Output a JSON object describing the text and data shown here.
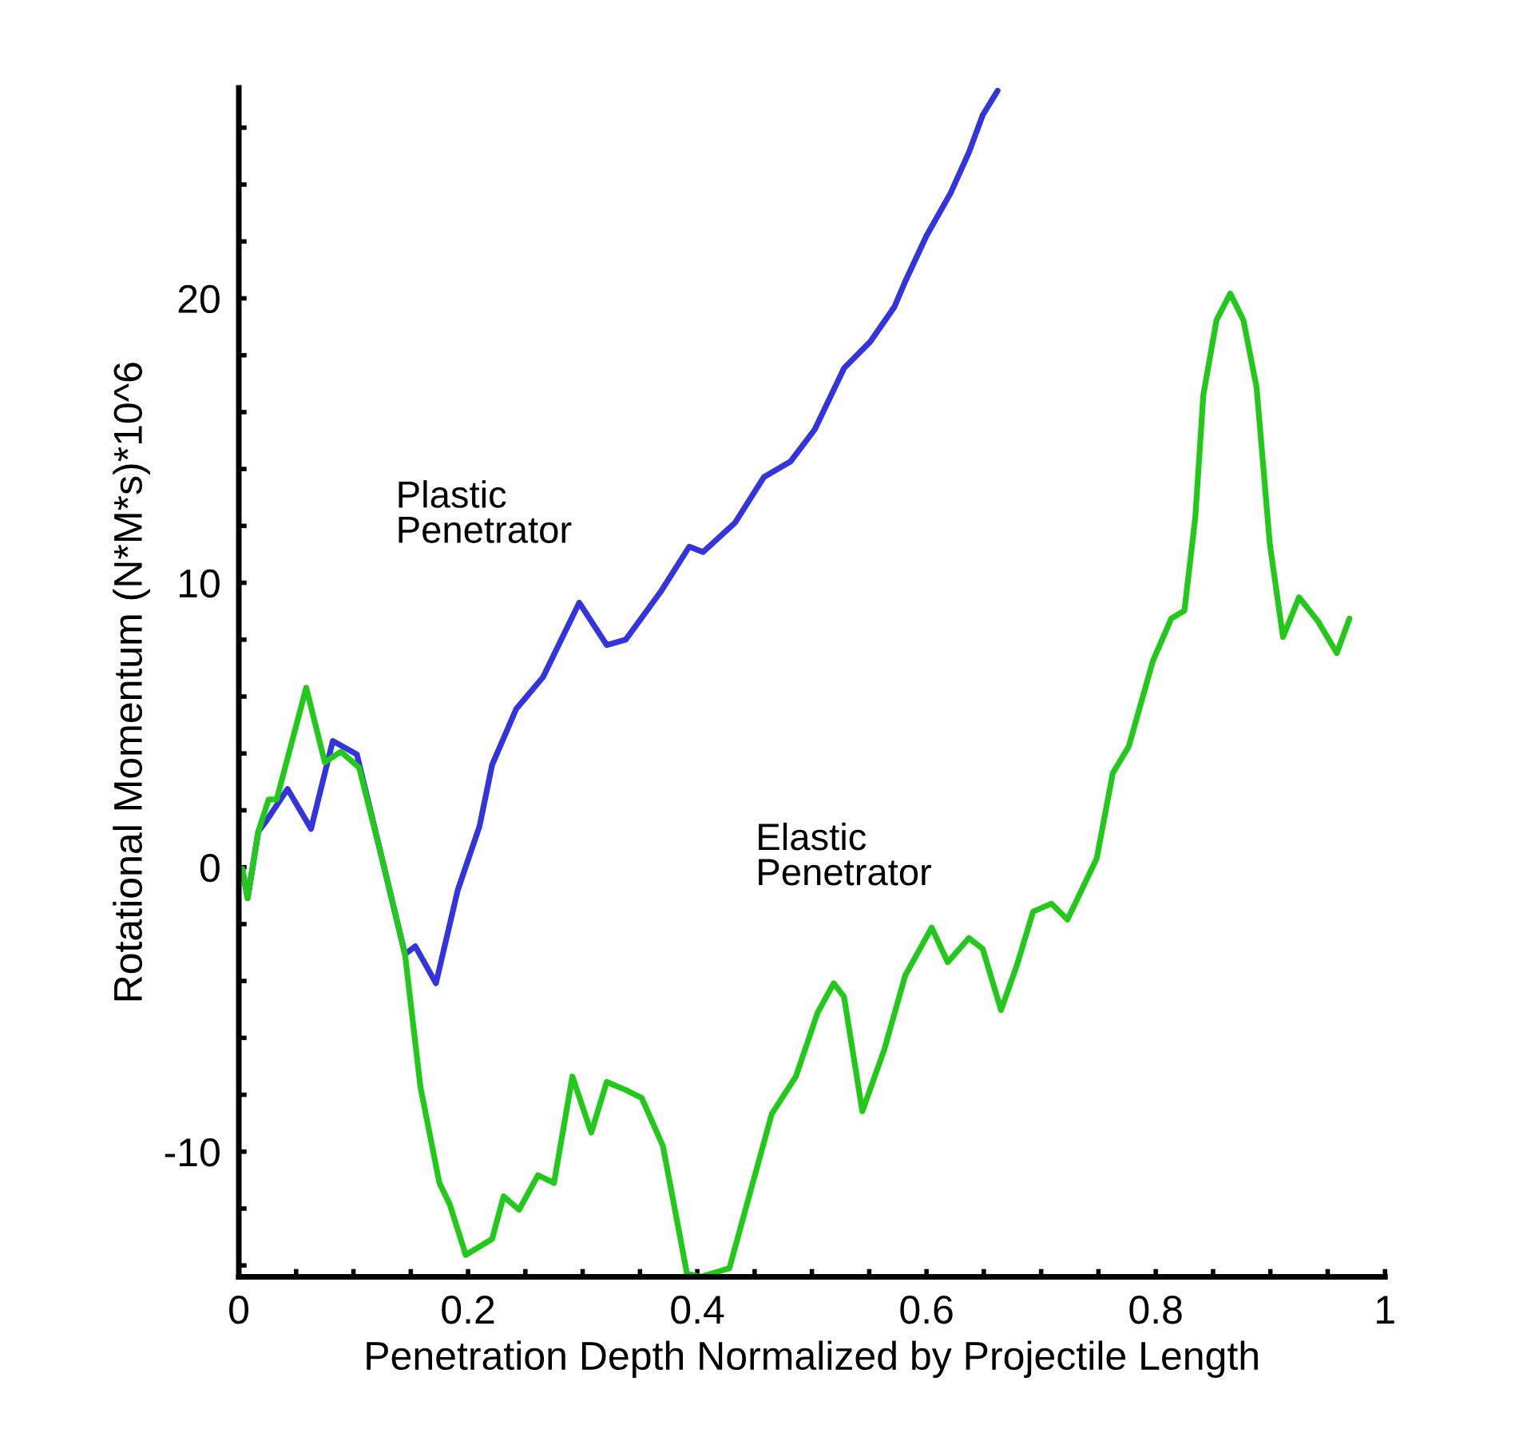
{
  "chart_data": {
    "type": "line",
    "xlabel": "Penetration Depth Normalized by Projectile Length",
    "ylabel": "Rotational Momentum (N*M*s)*10^6",
    "xlim": [
      0,
      1
    ],
    "ylim": [
      -14.4,
      27.4
    ],
    "xticks": [
      0,
      {
        "value": 0.05,
        "label": null
      },
      0.2,
      {
        "value": 0.1,
        "label": null
      },
      {
        "value": 0.15,
        "label": null
      },
      {
        "value": 0.25,
        "label": null
      },
      {
        "value": 0.3,
        "label": null
      },
      {
        "value": 0.35,
        "label": null
      },
      0.4,
      {
        "value": 0.45,
        "label": null
      },
      {
        "value": 0.5,
        "label": null
      },
      {
        "value": 0.55,
        "label": null
      },
      0.6,
      {
        "value": 0.65,
        "label": null
      },
      {
        "value": 0.7,
        "label": null
      },
      {
        "value": 0.75,
        "label": null
      },
      0.8,
      {
        "value": 0.85,
        "label": null
      },
      {
        "value": 0.9,
        "label": null
      },
      {
        "value": 0.95,
        "label": null
      },
      1
    ],
    "yticks": [
      {
        "value": -14,
        "label": null
      },
      {
        "value": -12,
        "label": null
      },
      -10,
      {
        "value": -8,
        "label": null
      },
      {
        "value": -6,
        "label": null
      },
      {
        "value": -4,
        "label": null
      },
      {
        "value": -2,
        "label": null
      },
      0,
      {
        "value": 2,
        "label": null
      },
      {
        "value": 4,
        "label": null
      },
      {
        "value": 6,
        "label": null
      },
      {
        "value": 8,
        "label": null
      },
      10,
      {
        "value": 12,
        "label": null
      },
      {
        "value": 14,
        "label": null
      },
      {
        "value": 16,
        "label": null
      },
      {
        "value": 18,
        "label": null
      },
      20,
      {
        "value": 22,
        "label": null
      },
      {
        "value": 24,
        "label": null
      },
      {
        "value": 26,
        "label": null
      }
    ],
    "grid": false,
    "legend": false,
    "marker": "none",
    "line_style": "solid",
    "series": [
      {
        "name": "Plastic\nPenetrator",
        "color": "#3434dc",
        "x": [
          0.003,
          0.0077,
          0.017,
          0.024,
          0.0425,
          0.063,
          0.082,
          0.103,
          0.1215,
          0.145,
          0.154,
          0.172,
          0.191,
          0.21,
          0.221,
          0.242,
          0.2655,
          0.297,
          0.321,
          0.3375,
          0.368,
          0.393,
          0.405,
          0.433,
          0.458,
          0.4815,
          0.5025,
          0.528,
          0.551,
          0.572,
          0.5815,
          0.6,
          0.621,
          0.637,
          0.649,
          0.662
        ],
        "values": [
          -0.06,
          -1.09,
          1.25,
          1.63,
          2.75,
          1.35,
          4.44,
          3.97,
          0.88,
          -3.06,
          -2.78,
          -4.08,
          -0.81,
          1.44,
          3.6,
          5.56,
          6.69,
          9.3,
          7.81,
          8.0,
          9.68,
          11.27,
          11.08,
          12.11,
          13.71,
          14.27,
          15.39,
          17.54,
          18.48,
          19.7,
          20.6,
          22.2,
          23.7,
          25.13,
          26.44,
          27.3
        ]
      },
      {
        "name": "Elastic\nPenetrator",
        "color": "#22c81a",
        "x": [
          0.003,
          0.0077,
          0.017,
          0.026,
          0.033,
          0.0588,
          0.075,
          0.089,
          0.105,
          0.126,
          0.145,
          0.1585,
          0.175,
          0.184,
          0.198,
          0.221,
          0.231,
          0.2445,
          0.261,
          0.275,
          0.291,
          0.3075,
          0.321,
          0.3375,
          0.3515,
          0.37,
          0.391,
          0.403,
          0.428,
          0.442,
          0.465,
          0.486,
          0.505,
          0.519,
          0.528,
          0.544,
          0.563,
          0.5815,
          0.6045,
          0.6185,
          0.637,
          0.649,
          0.665,
          0.679,
          0.693,
          0.709,
          0.723,
          0.7485,
          0.7625,
          0.7765,
          0.7975,
          0.8135,
          0.825,
          0.8345,
          0.8415,
          0.853,
          0.865,
          0.8765,
          0.888,
          0.8995,
          0.911,
          0.925,
          0.9415,
          0.958,
          0.969
        ],
        "values": [
          -0.06,
          -1.09,
          1.25,
          2.38,
          2.38,
          6.31,
          3.69,
          4.06,
          3.5,
          0.13,
          -3.06,
          -7.74,
          -11.1,
          -11.85,
          -13.63,
          -13.07,
          -11.57,
          -12.04,
          -10.83,
          -11.1,
          -7.36,
          -9.33,
          -7.55,
          -7.83,
          -8.11,
          -9.8,
          -14.29,
          -14.4,
          -14.1,
          -12.04,
          -8.67,
          -7.36,
          -5.11,
          -4.08,
          -4.55,
          -8.58,
          -6.43,
          -3.8,
          -2.12,
          -3.34,
          -2.49,
          -2.87,
          -5.02,
          -3.43,
          -1.56,
          -1.28,
          -1.84,
          0.31,
          3.31,
          4.25,
          7.25,
          8.74,
          9.02,
          12.3,
          16.6,
          19.23,
          20.17,
          19.23,
          16.86,
          11.37,
          8.09,
          9.49,
          8.65,
          7.53,
          8.74
        ]
      }
    ]
  }
}
